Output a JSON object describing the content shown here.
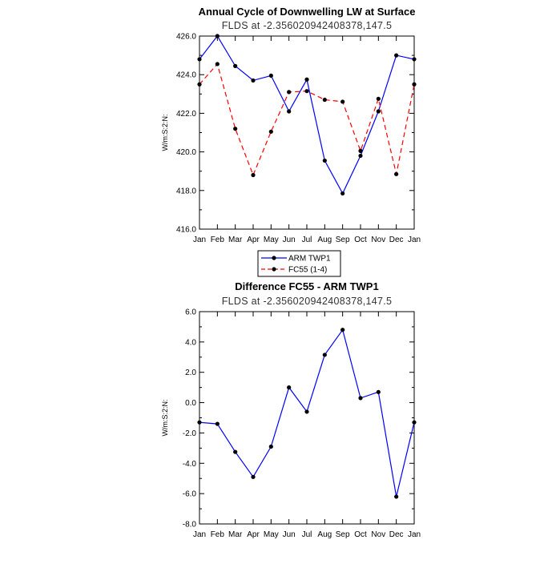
{
  "chart_data": [
    {
      "type": "line",
      "title": "Annual Cycle of Downwelling LW at Surface",
      "subtitle": "FLDS at -2.356020942408378,147.5",
      "ylabel": "W/m:S:2:N:",
      "xlabel": "",
      "categories": [
        "Jan",
        "Feb",
        "Mar",
        "Apr",
        "May",
        "Jun",
        "Jul",
        "Aug",
        "Sep",
        "Oct",
        "Nov",
        "Dec",
        "Jan"
      ],
      "ylim": [
        416.0,
        426.0
      ],
      "yticks": [
        "416.0",
        "418.0",
        "420.0",
        "422.0",
        "424.0",
        "426.0"
      ],
      "grid": false,
      "legend_position": "bottom-center",
      "series": [
        {
          "name": "ARM TWP1",
          "color": "#0000ff",
          "dash": "solid",
          "values": [
            424.8,
            426.0,
            424.45,
            423.7,
            423.95,
            422.1,
            423.75,
            419.55,
            417.85,
            419.8,
            422.1,
            425.0,
            424.8
          ]
        },
        {
          "name": "FC55 (1-4)",
          "color": "#ff0000",
          "dash": "dashed",
          "values": [
            423.5,
            424.55,
            421.2,
            418.8,
            421.05,
            423.1,
            423.15,
            422.7,
            422.6,
            420.05,
            422.75,
            418.85,
            423.5
          ]
        }
      ]
    },
    {
      "type": "line",
      "title": "Difference FC55 - ARM TWP1",
      "subtitle": "FLDS at -2.356020942408378,147.5",
      "ylabel": "W/m:S:2:N:",
      "xlabel": "",
      "categories": [
        "Jan",
        "Feb",
        "Mar",
        "Apr",
        "May",
        "Jun",
        "Jul",
        "Aug",
        "Sep",
        "Oct",
        "Nov",
        "Dec",
        "Jan"
      ],
      "ylim": [
        -8.0,
        6.0
      ],
      "yticks": [
        "-8.0",
        "-6.0",
        "-4.0",
        "-2.0",
        "0.0",
        "2.0",
        "4.0",
        "6.0"
      ],
      "grid": false,
      "series": [
        {
          "name": "",
          "color": "#0000ff",
          "dash": "solid",
          "values": [
            -1.3,
            -1.4,
            -3.25,
            -4.9,
            -2.9,
            1.0,
            -0.6,
            3.15,
            4.8,
            0.3,
            0.7,
            -6.2,
            -1.3
          ]
        }
      ]
    }
  ]
}
